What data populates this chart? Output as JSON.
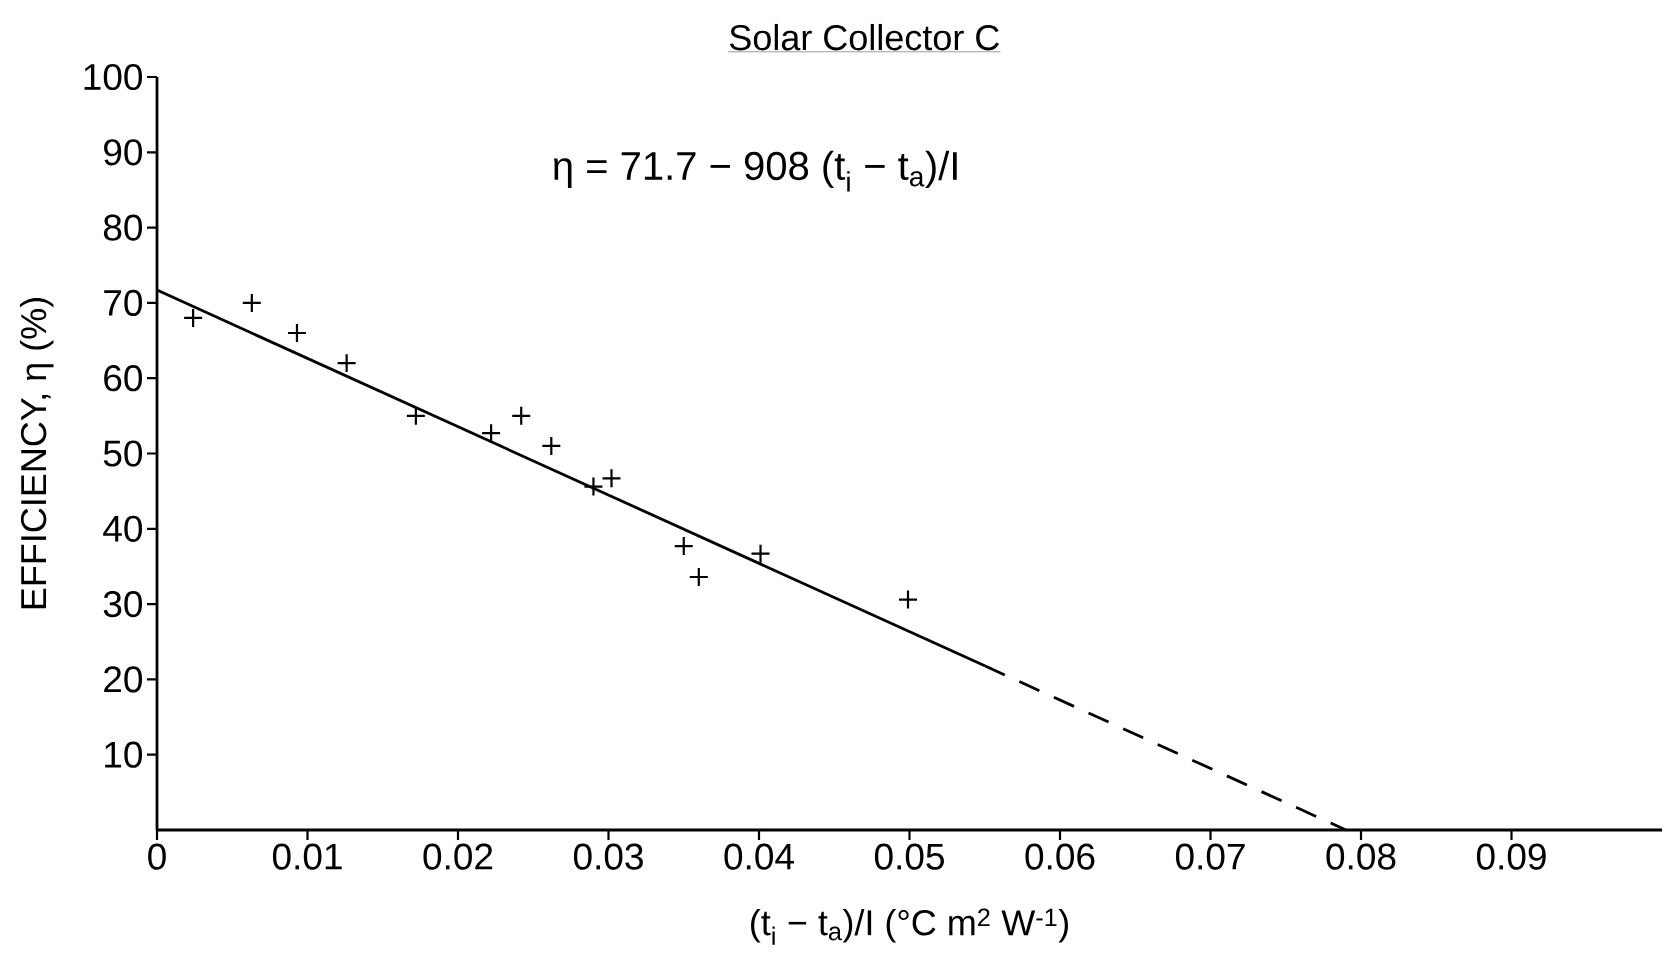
{
  "chart_data": {
    "type": "scatter",
    "title": "Solar Collector C",
    "xlabel": "(t$_{i}$ − t$_{a}$)/I   (°C m$^{2}$ W$^{-1}$)",
    "ylabel": "EFFICIENCY, η (%)",
    "annotations": [
      "η = 71.7 − 908 (t$_{i}$ − t$_{a}$)/I"
    ],
    "xlim": [
      0,
      0.1
    ],
    "ylim": [
      0,
      100
    ],
    "xticks": [
      0,
      0.01,
      0.02,
      0.03,
      0.04,
      0.05,
      0.06,
      0.07,
      0.08,
      0.09
    ],
    "yticks": [
      10,
      20,
      30,
      40,
      50,
      60,
      70,
      80,
      90,
      100
    ],
    "grid": false,
    "series": [
      {
        "marker": "cross",
        "color": "#000000",
        "x": [
          0.0024,
          0.0063,
          0.0093,
          0.0126,
          0.0172,
          0.0222,
          0.0242,
          0.0262,
          0.029,
          0.0302,
          0.035,
          0.036,
          0.0401,
          0.0499
        ],
        "values": [
          68,
          70,
          66,
          62,
          55,
          52.7,
          55,
          51,
          45.6,
          46.7,
          37.7,
          33.6,
          36.7,
          30.6
        ]
      },
      {
        "type": "line",
        "line_style": "solid",
        "color": "#000000",
        "x": [
          0,
          0.055
        ],
        "values": [
          71.7,
          21.8
        ]
      },
      {
        "type": "line",
        "line_style": "dashed",
        "color": "#000000",
        "x": [
          0.055,
          0.079
        ],
        "values": [
          21.8,
          0
        ]
      }
    ]
  }
}
